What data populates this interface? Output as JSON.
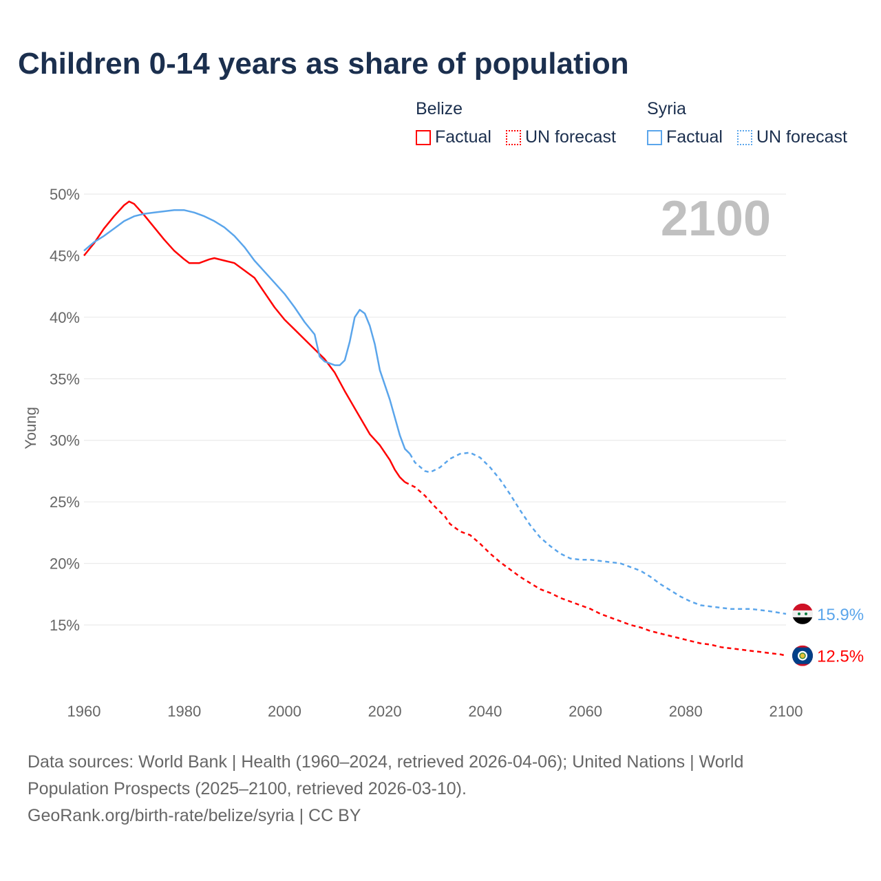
{
  "title": "Children 0-14 years as share of population",
  "legend": {
    "groups": [
      {
        "name": "Belize",
        "color": "#ff0000",
        "factual": "Factual",
        "forecast": "UN forecast"
      },
      {
        "name": "Syria",
        "color": "#5aa5eb",
        "factual": "Factual",
        "forecast": "UN forecast"
      }
    ]
  },
  "footer": {
    "line1": "Data sources: World Bank | Health (1960–2024, retrieved 2026-04-06); United Nations | World",
    "line2": "Population Prospects (2025–2100, retrieved 2026-03-10).",
    "line3": "GeoRank.org/birth-rate/belize/syria | CC BY"
  },
  "chart_data": {
    "type": "line",
    "title": "Children 0-14 years as share of population",
    "ylabel": "Young",
    "xlabel": "",
    "year_label": "2100",
    "xlim": [
      1960,
      2100
    ],
    "ylim": [
      10,
      50
    ],
    "xticks": [
      1960,
      1980,
      2000,
      2020,
      2040,
      2060,
      2080,
      2100
    ],
    "xtick_labels": [
      "1960",
      "1980",
      "2000",
      "2020",
      "2040",
      "2060",
      "2080",
      "2100"
    ],
    "yticks": [
      15,
      20,
      25,
      30,
      35,
      40,
      45,
      50
    ],
    "ytick_labels": [
      "15%",
      "20%",
      "25%",
      "30%",
      "35%",
      "40%",
      "45%",
      "50%"
    ],
    "grid": true,
    "series": [
      {
        "name": "Belize",
        "color": "#ff0000",
        "end_label": "12.5%",
        "flag": "belize",
        "factual": [
          [
            1960,
            45.0
          ],
          [
            1962,
            46.0
          ],
          [
            1964,
            47.2
          ],
          [
            1966,
            48.2
          ],
          [
            1968,
            49.1
          ],
          [
            1969,
            49.4
          ],
          [
            1970,
            49.2
          ],
          [
            1972,
            48.3
          ],
          [
            1974,
            47.3
          ],
          [
            1976,
            46.3
          ],
          [
            1978,
            45.4
          ],
          [
            1980,
            44.7
          ],
          [
            1981,
            44.4
          ],
          [
            1983,
            44.4
          ],
          [
            1985,
            44.7
          ],
          [
            1986,
            44.8
          ],
          [
            1988,
            44.6
          ],
          [
            1990,
            44.4
          ],
          [
            1992,
            43.8
          ],
          [
            1994,
            43.2
          ],
          [
            1996,
            42.0
          ],
          [
            1998,
            40.8
          ],
          [
            2000,
            39.8
          ],
          [
            2002,
            39.0
          ],
          [
            2004,
            38.2
          ],
          [
            2006,
            37.4
          ],
          [
            2008,
            36.6
          ],
          [
            2010,
            35.5
          ],
          [
            2012,
            34.0
          ],
          [
            2014,
            32.6
          ],
          [
            2016,
            31.2
          ],
          [
            2017,
            30.5
          ],
          [
            2019,
            29.6
          ],
          [
            2021,
            28.4
          ],
          [
            2022,
            27.6
          ],
          [
            2023,
            27.0
          ],
          [
            2024,
            26.6
          ]
        ],
        "forecast": [
          [
            2024,
            26.6
          ],
          [
            2026,
            26.2
          ],
          [
            2028,
            25.5
          ],
          [
            2030,
            24.6
          ],
          [
            2032,
            23.8
          ],
          [
            2033,
            23.2
          ],
          [
            2035,
            22.6
          ],
          [
            2037,
            22.3
          ],
          [
            2039,
            21.6
          ],
          [
            2041,
            20.8
          ],
          [
            2043,
            20.1
          ],
          [
            2045,
            19.5
          ],
          [
            2047,
            18.9
          ],
          [
            2049,
            18.4
          ],
          [
            2051,
            17.9
          ],
          [
            2053,
            17.6
          ],
          [
            2055,
            17.2
          ],
          [
            2057,
            16.9
          ],
          [
            2059,
            16.6
          ],
          [
            2061,
            16.3
          ],
          [
            2063,
            15.9
          ],
          [
            2065,
            15.6
          ],
          [
            2067,
            15.3
          ],
          [
            2069,
            15.0
          ],
          [
            2071,
            14.8
          ],
          [
            2073,
            14.5
          ],
          [
            2075,
            14.3
          ],
          [
            2077,
            14.1
          ],
          [
            2079,
            13.9
          ],
          [
            2081,
            13.7
          ],
          [
            2083,
            13.5
          ],
          [
            2085,
            13.4
          ],
          [
            2087,
            13.2
          ],
          [
            2089,
            13.1
          ],
          [
            2091,
            13.0
          ],
          [
            2093,
            12.9
          ],
          [
            2095,
            12.8
          ],
          [
            2097,
            12.7
          ],
          [
            2099,
            12.6
          ],
          [
            2100,
            12.5
          ]
        ]
      },
      {
        "name": "Syria",
        "color": "#5aa5eb",
        "end_label": "15.9%",
        "flag": "syria",
        "factual": [
          [
            1960,
            45.4
          ],
          [
            1962,
            46.1
          ],
          [
            1964,
            46.6
          ],
          [
            1966,
            47.2
          ],
          [
            1968,
            47.8
          ],
          [
            1970,
            48.2
          ],
          [
            1972,
            48.4
          ],
          [
            1974,
            48.5
          ],
          [
            1976,
            48.6
          ],
          [
            1978,
            48.7
          ],
          [
            1980,
            48.7
          ],
          [
            1982,
            48.5
          ],
          [
            1984,
            48.2
          ],
          [
            1986,
            47.8
          ],
          [
            1988,
            47.3
          ],
          [
            1990,
            46.6
          ],
          [
            1992,
            45.7
          ],
          [
            1994,
            44.6
          ],
          [
            1996,
            43.7
          ],
          [
            1998,
            42.8
          ],
          [
            2000,
            41.9
          ],
          [
            2002,
            40.8
          ],
          [
            2004,
            39.6
          ],
          [
            2006,
            38.6
          ],
          [
            2007,
            36.8
          ],
          [
            2008,
            36.4
          ],
          [
            2010,
            36.1
          ],
          [
            2011,
            36.1
          ],
          [
            2012,
            36.5
          ],
          [
            2013,
            38.0
          ],
          [
            2014,
            40.0
          ],
          [
            2015,
            40.6
          ],
          [
            2016,
            40.3
          ],
          [
            2017,
            39.3
          ],
          [
            2018,
            37.8
          ],
          [
            2019,
            35.7
          ],
          [
            2021,
            33.3
          ],
          [
            2023,
            30.4
          ],
          [
            2024,
            29.3
          ],
          [
            2025,
            28.9
          ]
        ],
        "forecast": [
          [
            2025,
            28.9
          ],
          [
            2026,
            28.2
          ],
          [
            2028,
            27.5
          ],
          [
            2029,
            27.4
          ],
          [
            2031,
            27.8
          ],
          [
            2033,
            28.5
          ],
          [
            2035,
            28.9
          ],
          [
            2037,
            29.0
          ],
          [
            2039,
            28.6
          ],
          [
            2041,
            27.8
          ],
          [
            2043,
            26.8
          ],
          [
            2045,
            25.6
          ],
          [
            2047,
            24.3
          ],
          [
            2049,
            23.1
          ],
          [
            2051,
            22.1
          ],
          [
            2053,
            21.4
          ],
          [
            2055,
            20.8
          ],
          [
            2057,
            20.4
          ],
          [
            2059,
            20.3
          ],
          [
            2061,
            20.3
          ],
          [
            2063,
            20.2
          ],
          [
            2065,
            20.1
          ],
          [
            2067,
            20.0
          ],
          [
            2069,
            19.7
          ],
          [
            2071,
            19.4
          ],
          [
            2073,
            18.9
          ],
          [
            2075,
            18.3
          ],
          [
            2077,
            17.8
          ],
          [
            2079,
            17.3
          ],
          [
            2081,
            16.9
          ],
          [
            2083,
            16.6
          ],
          [
            2085,
            16.5
          ],
          [
            2087,
            16.4
          ],
          [
            2089,
            16.3
          ],
          [
            2093,
            16.3
          ],
          [
            2095,
            16.2
          ],
          [
            2097,
            16.1
          ],
          [
            2100,
            15.9
          ]
        ]
      }
    ]
  }
}
